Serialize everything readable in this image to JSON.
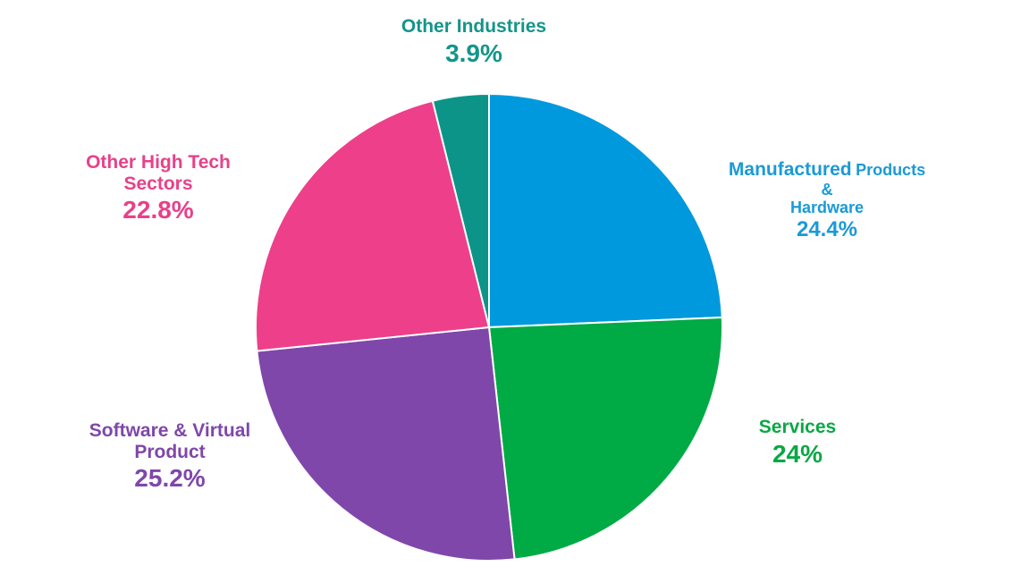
{
  "chart_data": {
    "type": "pie",
    "title": "",
    "start_angle_deg": 0,
    "direction": "clockwise",
    "slices": [
      {
        "id": "manuf",
        "label_line1": "Manufactured",
        "label_line1b": "Products",
        "label_line2": "&",
        "label_line3": "Hardware",
        "value": 24.4,
        "display": "24.4%",
        "color": "#0099dd"
      },
      {
        "id": "services",
        "label": "Services",
        "value": 24.0,
        "display": "24%",
        "color": "#00aa44"
      },
      {
        "id": "software",
        "label_line1": "Software & Virtual",
        "label_line2": "Product",
        "value": 25.2,
        "display": "25.2%",
        "color": "#7f47aa"
      },
      {
        "id": "othertech",
        "label_line1": "Other High Tech",
        "label_line2": "Sectors",
        "value": 22.8,
        "display": "22.8%",
        "color": "#ee3f8a"
      },
      {
        "id": "otherind",
        "label": "Other Industries",
        "value": 3.9,
        "display": "3.9%",
        "color": "#0d9488"
      }
    ]
  }
}
